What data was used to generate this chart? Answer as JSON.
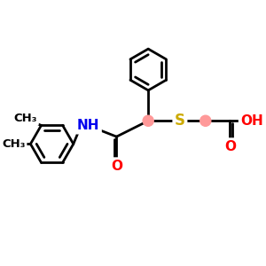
{
  "bg_color": "#ffffff",
  "bond_color": "#000000",
  "bond_width": 2.0,
  "atom_colors": {
    "N": "#0000ee",
    "O": "#ff0000",
    "S": "#ccaa00",
    "C": "#000000"
  },
  "stereo_color": "#ff9999",
  "font_size": 11,
  "fig_size": [
    3.0,
    3.0
  ],
  "dpi": 100,
  "xlim": [
    0,
    10
  ],
  "ylim": [
    0,
    10
  ]
}
